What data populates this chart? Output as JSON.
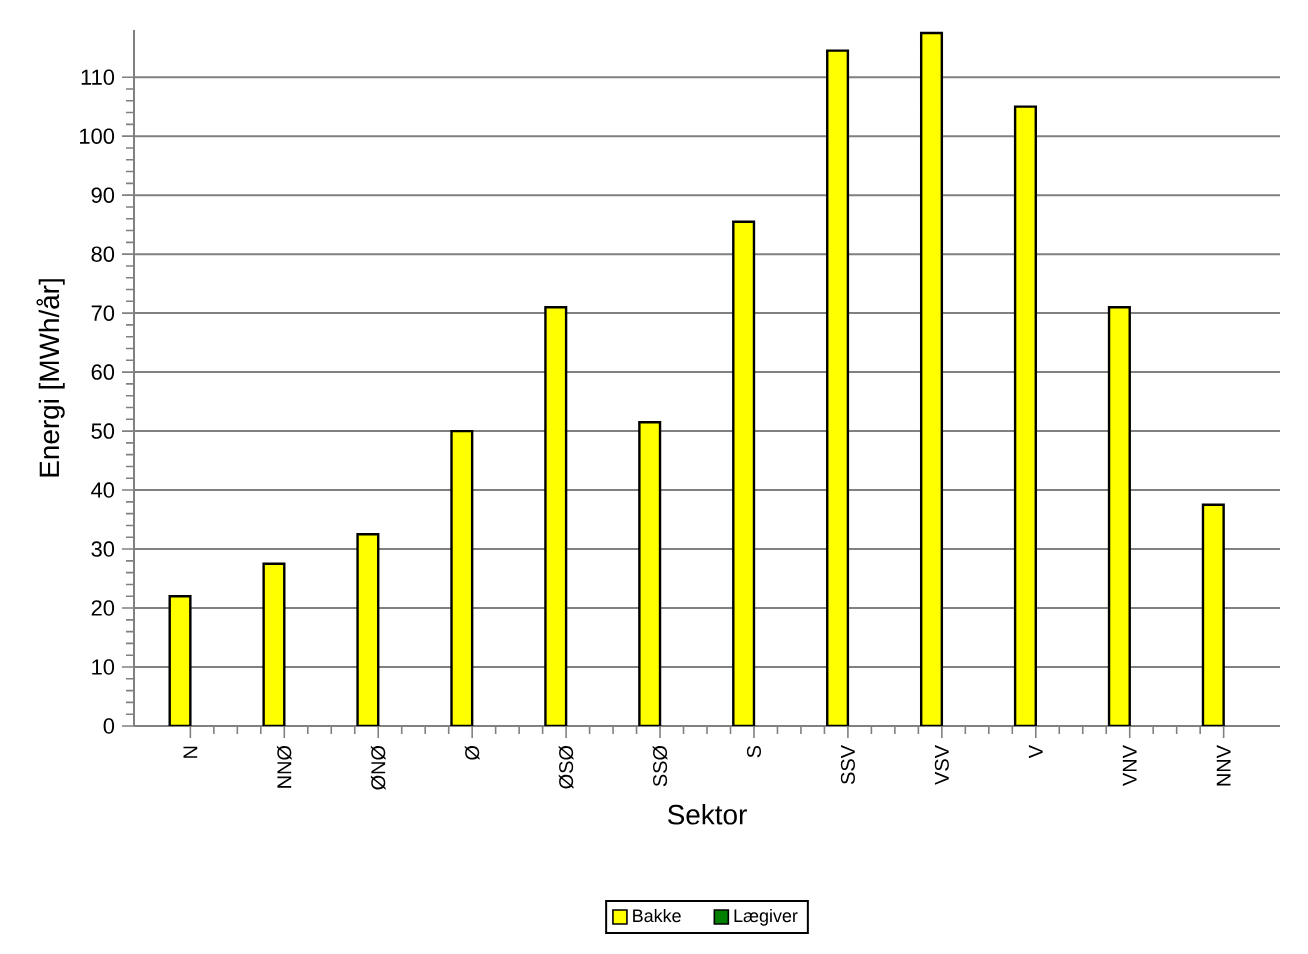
{
  "chart_data": {
    "type": "bar",
    "xlabel": "Sektor",
    "ylabel": "Energi [MWh/år]",
    "categories": [
      "N",
      "NNØ",
      "ØNØ",
      "Ø",
      "ØSØ",
      "SSØ",
      "S",
      "SSV",
      "VSV",
      "V",
      "VNV",
      "NNV"
    ],
    "series": [
      {
        "name": "Bakke",
        "color": "#ffff00",
        "values": [
          22,
          27.5,
          32.5,
          50,
          71,
          51.5,
          85.5,
          114.5,
          117.5,
          105,
          71,
          37.5
        ]
      },
      {
        "name": "Lægiver",
        "color": "#008000",
        "values": [
          null,
          null,
          null,
          null,
          null,
          null,
          null,
          null,
          null,
          null,
          null,
          null
        ]
      }
    ],
    "ylim": [
      0,
      118
    ],
    "yticks": [
      0,
      10,
      20,
      30,
      40,
      50,
      60,
      70,
      80,
      90,
      100,
      110
    ],
    "grid": "y",
    "legend": "bottom"
  }
}
